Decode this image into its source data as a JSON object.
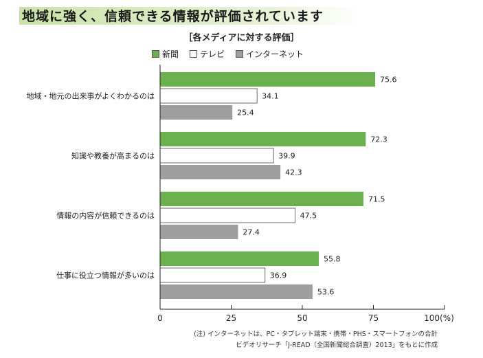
{
  "headline": "地域に強く、信頼できる情報が評価されています",
  "chart_data": {
    "type": "bar",
    "orientation": "horizontal",
    "title": "［各メディアに対する評価］",
    "categories": [
      "地域・地元の出来事がよくわかるのは",
      "知識や教養が高まるのは",
      "情報の内容が信頼できるのは",
      "仕事に役立つ情報が多いのは"
    ],
    "series": [
      {
        "name": "新聞",
        "color": "#6ab04c",
        "values": [
          75.6,
          72.3,
          71.5,
          55.8
        ]
      },
      {
        "name": "テレビ",
        "color": "#ffffff",
        "values": [
          34.1,
          39.9,
          47.5,
          36.9
        ]
      },
      {
        "name": "インターネット",
        "color": "#9e9e9e",
        "values": [
          25.4,
          42.3,
          27.4,
          53.6
        ]
      }
    ],
    "xlim": [
      0,
      100
    ],
    "xticks": [
      "0",
      "25",
      "50",
      "75",
      "100(%)"
    ],
    "legend": "top-left",
    "grid": false
  },
  "notes": [
    "(注) インターネットは、PC・タブレット端末・携帯・PHS・スマートフォンの合計",
    "ビデオリサーチ「J-READ（全国新聞総合調査）2013」をもとに作成"
  ]
}
